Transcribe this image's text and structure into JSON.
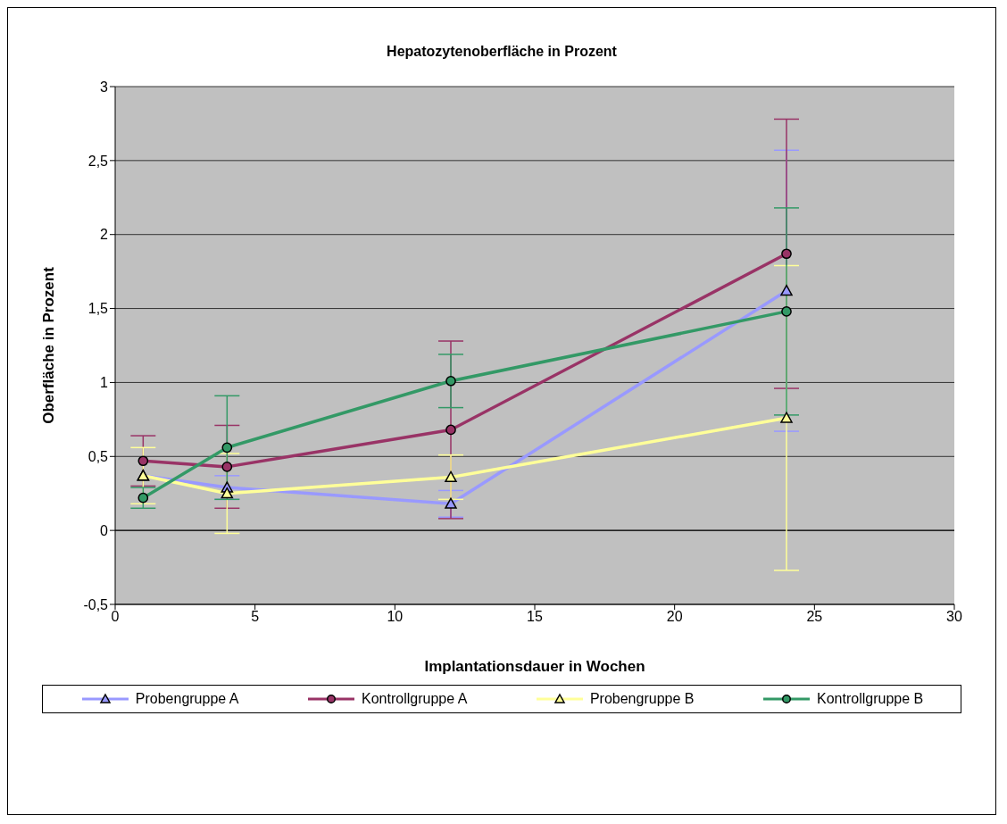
{
  "chart_data": {
    "type": "line",
    "title": "Hepatozytenoberfläche in Prozent",
    "xlabel": "Implantationsdauer in Wochen",
    "ylabel": "Oberfläche in Prozent",
    "x": [
      1,
      4,
      12,
      24
    ],
    "series": [
      {
        "name": "Probengruppe A",
        "color": "#9999ff",
        "marker": "triangle",
        "values": [
          0.37,
          0.29,
          0.18,
          1.62
        ],
        "errors": [
          null,
          0.08,
          0.09,
          0.95
        ]
      },
      {
        "name": "Kontrollgruppe A",
        "color": "#993366",
        "marker": "circle",
        "values": [
          0.47,
          0.43,
          0.68,
          1.87
        ],
        "errors": [
          0.17,
          0.28,
          0.6,
          0.91
        ]
      },
      {
        "name": "Probengruppe B",
        "color": "#ffff99",
        "marker": "triangle",
        "values": [
          0.37,
          0.25,
          0.36,
          0.76
        ],
        "errors": [
          0.19,
          0.27,
          0.15,
          1.03
        ]
      },
      {
        "name": "Kontrollgruppe B",
        "color": "#339966",
        "marker": "circle",
        "values": [
          0.22,
          0.56,
          1.01,
          1.48
        ],
        "errors": [
          0.07,
          0.35,
          0.18,
          0.7
        ]
      }
    ],
    "xlim": [
      0,
      30
    ],
    "xticks": [
      0,
      5,
      10,
      15,
      20,
      25,
      30
    ],
    "ylim": [
      -0.5,
      3
    ],
    "yticks": [
      {
        "value": -0.5,
        "label": "-0,5"
      },
      0,
      {
        "value": 0.5,
        "label": "0,5"
      },
      1,
      {
        "value": 1.5,
        "label": "1,5"
      },
      2,
      {
        "value": 2.5,
        "label": "2,5"
      },
      3
    ],
    "grid": "y",
    "legend": "bottom",
    "line_style": "solid"
  }
}
